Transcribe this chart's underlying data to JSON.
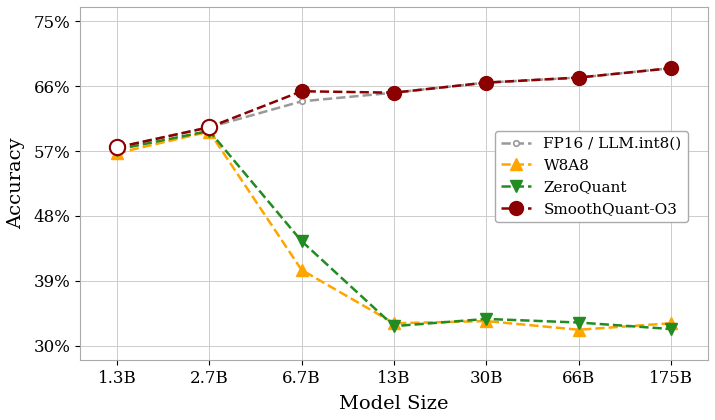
{
  "x_labels": [
    "1.3B",
    "2.7B",
    "6.7B",
    "13B",
    "30B",
    "66B",
    "175B"
  ],
  "x_positions": [
    0,
    1,
    2,
    3,
    4,
    5,
    6
  ],
  "fp16": [
    57.5,
    60.3,
    63.9,
    65.1,
    66.5,
    67.2,
    68.5
  ],
  "w8a8": [
    56.7,
    59.7,
    40.5,
    33.1,
    33.4,
    32.2,
    33.1
  ],
  "zeroquant": [
    57.2,
    59.8,
    44.5,
    32.7,
    33.7,
    33.2,
    32.3
  ],
  "smoothquant": [
    57.5,
    60.3,
    65.3,
    65.1,
    66.5,
    67.2,
    68.5
  ],
  "fp16_color": "#999999",
  "w8a8_color": "#FFA500",
  "zeroquant_color": "#228B22",
  "smoothquant_color": "#8B0000",
  "xlabel": "Model Size",
  "ylabel": "Accuracy",
  "ylim": [
    28,
    77
  ],
  "yticks": [
    30,
    39,
    48,
    57,
    66,
    75
  ],
  "ytick_labels": [
    "30%",
    "39%",
    "48%",
    "57%",
    "66%",
    "75%"
  ],
  "grid_color": "#cccccc",
  "background_color": "#ffffff"
}
